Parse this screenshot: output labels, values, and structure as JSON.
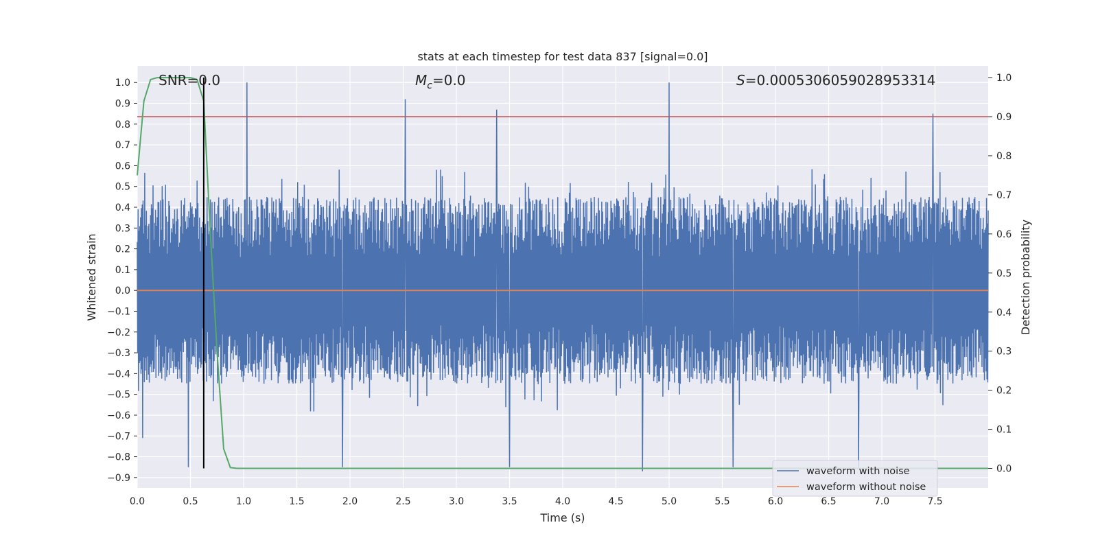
{
  "chart_data": {
    "type": "line",
    "title": "stats at each timestep for test data 837 [signal=0.0]",
    "xlabel": "Time (s)",
    "ylabel": "Whitened strain",
    "y2label": "Detection probability",
    "xlim": [
      0.0,
      8.0
    ],
    "ylim": [
      -0.95,
      1.08
    ],
    "y2lim": [
      -0.05,
      1.03
    ],
    "x_ticks": [
      "0.0",
      "0.5",
      "1.0",
      "1.5",
      "2.0",
      "2.5",
      "3.0",
      "3.5",
      "4.0",
      "4.5",
      "5.0",
      "5.5",
      "6.0",
      "6.5",
      "7.0",
      "7.5"
    ],
    "y_ticks": [
      "1.0",
      "0.9",
      "0.8",
      "0.7",
      "0.6",
      "0.5",
      "0.4",
      "0.3",
      "0.2",
      "0.1",
      "0.0",
      "-0.1",
      "-0.2",
      "-0.3",
      "-0.4",
      "-0.5",
      "-0.6",
      "-0.7",
      "-0.8",
      "-0.9"
    ],
    "y2_ticks": [
      "1.0",
      "0.9",
      "0.8",
      "0.7",
      "0.6",
      "0.5",
      "0.4",
      "0.3",
      "0.2",
      "0.1",
      "0.0"
    ],
    "annotations": {
      "snr": "SNR=0.0",
      "mc_symbol": "M",
      "mc_sub": "c",
      "mc_value": "=0.0",
      "s_symbol": "S",
      "s_value": "=0.0005306059028953314"
    },
    "threshold": {
      "name": "detection threshold",
      "axis": "right",
      "value": 0.9,
      "color": "#c44e52"
    },
    "marker_line": {
      "name": "marker time",
      "x": 0.625,
      "y_from": 0.0,
      "y_to": 1.0,
      "axis": "right",
      "color": "#000000"
    },
    "noise_envelope": {
      "name": "waveform with noise",
      "color": "#4c72b0",
      "sample_rate_hz": 256,
      "typical_upper": 0.45,
      "typical_lower": -0.45,
      "spikes": [
        {
          "x": 1.03,
          "y": 1.0
        },
        {
          "x": 2.52,
          "y": 0.92
        },
        {
          "x": 3.38,
          "y": 0.87
        },
        {
          "x": 5.0,
          "y": 1.0
        },
        {
          "x": 7.48,
          "y": 0.85
        },
        {
          "x": 0.05,
          "y": -0.71
        },
        {
          "x": 0.48,
          "y": -0.85
        },
        {
          "x": 1.93,
          "y": -0.85
        },
        {
          "x": 3.5,
          "y": -0.85
        },
        {
          "x": 4.75,
          "y": -0.87
        },
        {
          "x": 5.6,
          "y": -0.85
        },
        {
          "x": 6.78,
          "y": -0.85
        }
      ]
    },
    "series": [
      {
        "name": "waveform without noise",
        "color": "#dd8452",
        "axis": "left",
        "x": [
          0.0,
          8.0
        ],
        "y": [
          0.0,
          0.0
        ]
      },
      {
        "name": "detection probability",
        "color": "#55a868",
        "axis": "right",
        "x": [
          0.0,
          0.0625,
          0.125,
          0.1875,
          0.25,
          0.3125,
          0.375,
          0.4375,
          0.5,
          0.5625,
          0.625,
          0.6875,
          0.75,
          0.8125,
          0.875,
          0.9375,
          1.0,
          2.0,
          3.0,
          4.0,
          5.0,
          6.0,
          7.0,
          7.5,
          8.0
        ],
        "y": [
          0.75,
          0.94,
          0.995,
          1.0,
          1.0,
          1.0,
          1.0,
          1.0,
          1.0,
          0.995,
          0.94,
          0.6,
          0.3,
          0.05,
          0.002,
          0.0,
          0.0,
          0.0,
          0.0,
          0.0,
          0.0,
          0.0,
          0.0,
          0.0,
          0.0
        ]
      }
    ],
    "legend": {
      "placement": "lower-right",
      "entries": [
        {
          "label": "waveform with noise",
          "color": "#4c72b0"
        },
        {
          "label": "waveform without noise",
          "color": "#dd8452"
        }
      ]
    }
  }
}
